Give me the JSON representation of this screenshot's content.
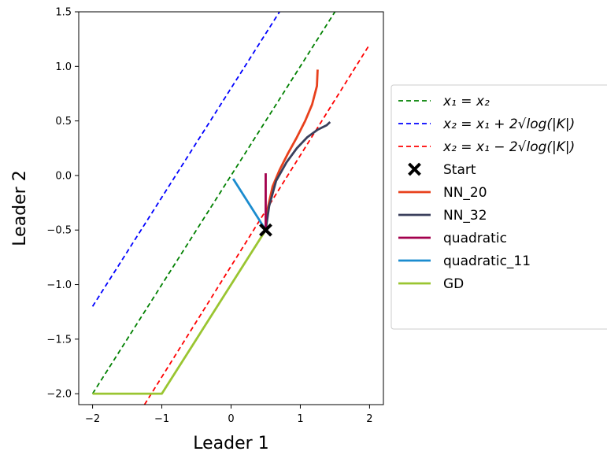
{
  "chart_data": {
    "type": "line",
    "xlabel": "Leader 1",
    "ylabel": "Leader 2",
    "xlim": [
      -2.2,
      2.2
    ],
    "ylim": [
      -2.1,
      1.5
    ],
    "xticks": [
      -2,
      -1,
      0,
      1,
      2
    ],
    "xtick_labels": [
      "−2",
      "−1",
      "0",
      "1",
      "2"
    ],
    "yticks": [
      -2.0,
      -1.5,
      -1.0,
      -0.5,
      0.0,
      0.5,
      1.0,
      1.5
    ],
    "ytick_labels": [
      "−2.0",
      "−1.5",
      "−1.0",
      "−0.5",
      "0.0",
      "0.5",
      "1.0",
      "1.5"
    ],
    "grid": false,
    "legend_position": "right",
    "series": [
      {
        "name": "x₁ = x₂",
        "color": "#008000",
        "style": "dashed",
        "x": [
          -2.0,
          1.5
        ],
        "y": [
          -2.0,
          1.5
        ]
      },
      {
        "name": "x₂ = x₁ + 2√log(|K|)",
        "color": "#0000ff",
        "style": "dashed",
        "x": [
          -2.0,
          0.7
        ],
        "y": [
          -1.2,
          1.5
        ]
      },
      {
        "name": "x₂ = x₁ − 2√log(|K|)",
        "color": "#ff0000",
        "style": "dashed",
        "x": [
          -1.25,
          2.0
        ],
        "y": [
          -2.1,
          1.2
        ]
      },
      {
        "name": "NN_20",
        "color": "#e8401c",
        "style": "solid",
        "x": [
          0.5,
          0.53,
          0.6,
          0.7,
          0.82,
          0.95,
          1.07,
          1.17,
          1.24,
          1.25
        ],
        "y": [
          -0.5,
          -0.3,
          -0.1,
          0.05,
          0.2,
          0.35,
          0.5,
          0.65,
          0.82,
          0.97
        ]
      },
      {
        "name": "NN_32",
        "color": "#3a3f5c",
        "style": "solid",
        "x": [
          0.5,
          0.55,
          0.65,
          0.8,
          0.95,
          1.1,
          1.25,
          1.38,
          1.43
        ],
        "y": [
          -0.5,
          -0.28,
          -0.05,
          0.12,
          0.25,
          0.35,
          0.42,
          0.46,
          0.49
        ]
      },
      {
        "name": "quadratic",
        "color": "#a3004d",
        "style": "solid",
        "x": [
          0.5,
          0.5
        ],
        "y": [
          -0.5,
          0.02
        ]
      },
      {
        "name": "quadratic_11",
        "color": "#1b8ccf",
        "style": "solid",
        "x": [
          0.5,
          0.03
        ],
        "y": [
          -0.5,
          -0.03
        ]
      },
      {
        "name": "GD",
        "color": "#9ac531",
        "style": "solid",
        "x": [
          0.5,
          -1.0,
          -2.0
        ],
        "y": [
          -0.5,
          -2.0,
          -2.0
        ]
      }
    ],
    "start": {
      "name": "Start",
      "x": 0.5,
      "y": -0.5,
      "color": "#000000"
    }
  },
  "legend": {
    "items": [
      {
        "kind": "line",
        "color": "#008000",
        "dash": true,
        "label": "x₁ = x₂"
      },
      {
        "kind": "line",
        "color": "#0000ff",
        "dash": true,
        "label": "x₂ = x₁ + 2√log(|K|)"
      },
      {
        "kind": "line",
        "color": "#ff0000",
        "dash": true,
        "label": "x₂ = x₁ − 2√log(|K|)"
      },
      {
        "kind": "marker",
        "color": "#000000",
        "dash": false,
        "label": "Start"
      },
      {
        "kind": "line",
        "color": "#e8401c",
        "dash": false,
        "label": "NN_20"
      },
      {
        "kind": "line",
        "color": "#3a3f5c",
        "dash": false,
        "label": "NN_32"
      },
      {
        "kind": "line",
        "color": "#a3004d",
        "dash": false,
        "label": "quadratic"
      },
      {
        "kind": "line",
        "color": "#1b8ccf",
        "dash": false,
        "label": "quadratic_11"
      },
      {
        "kind": "line",
        "color": "#9ac531",
        "dash": false,
        "label": "GD"
      }
    ]
  }
}
